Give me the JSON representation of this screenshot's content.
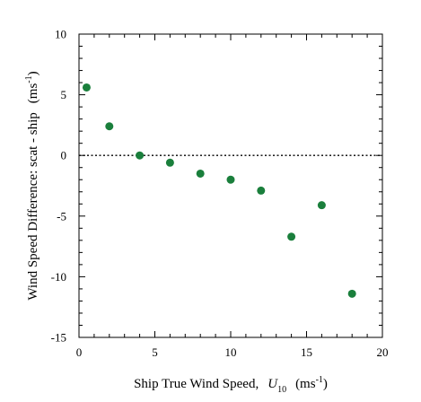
{
  "chart_data": {
    "type": "scatter",
    "title": "",
    "xlabel": {
      "main": "Ship True Wind Speed,",
      "symbol": "U",
      "subscript": "10",
      "unit_open": "(ms",
      "unit_exp": "-1",
      "unit_close": ")"
    },
    "ylabel": {
      "main": "Wind Speed Difference:  scat - ship",
      "unit_open": "(ms",
      "unit_exp": "-1",
      "unit_close": ")"
    },
    "xlim": [
      0,
      20
    ],
    "ylim": [
      -15,
      10
    ],
    "x_major_ticks": [
      0,
      5,
      10,
      15,
      20
    ],
    "x_minor_step": 1,
    "y_major_ticks": [
      -15,
      -10,
      -5,
      0,
      5,
      10
    ],
    "y_minor_step": 1,
    "x_tick_labels": [
      "0",
      "5",
      "10",
      "15",
      "20"
    ],
    "y_tick_labels": [
      "-15",
      "-10",
      "-5",
      "0",
      "5",
      "10"
    ],
    "grid": false,
    "legend": "none",
    "reference_line": {
      "y": 0,
      "style": "dotted",
      "color": "#000000"
    },
    "marker_color": "#1a7f3c",
    "series": [
      {
        "points": [
          {
            "x": 0.5,
            "y": 5.6
          },
          {
            "x": 2,
            "y": 2.4
          },
          {
            "x": 4,
            "y": 0.0
          },
          {
            "x": 6,
            "y": -0.6
          },
          {
            "x": 8,
            "y": -1.5
          },
          {
            "x": 10,
            "y": -2.0
          },
          {
            "x": 12,
            "y": -2.9
          },
          {
            "x": 14,
            "y": -6.7
          },
          {
            "x": 16,
            "y": -4.1
          },
          {
            "x": 18,
            "y": -11.4
          }
        ]
      }
    ]
  }
}
